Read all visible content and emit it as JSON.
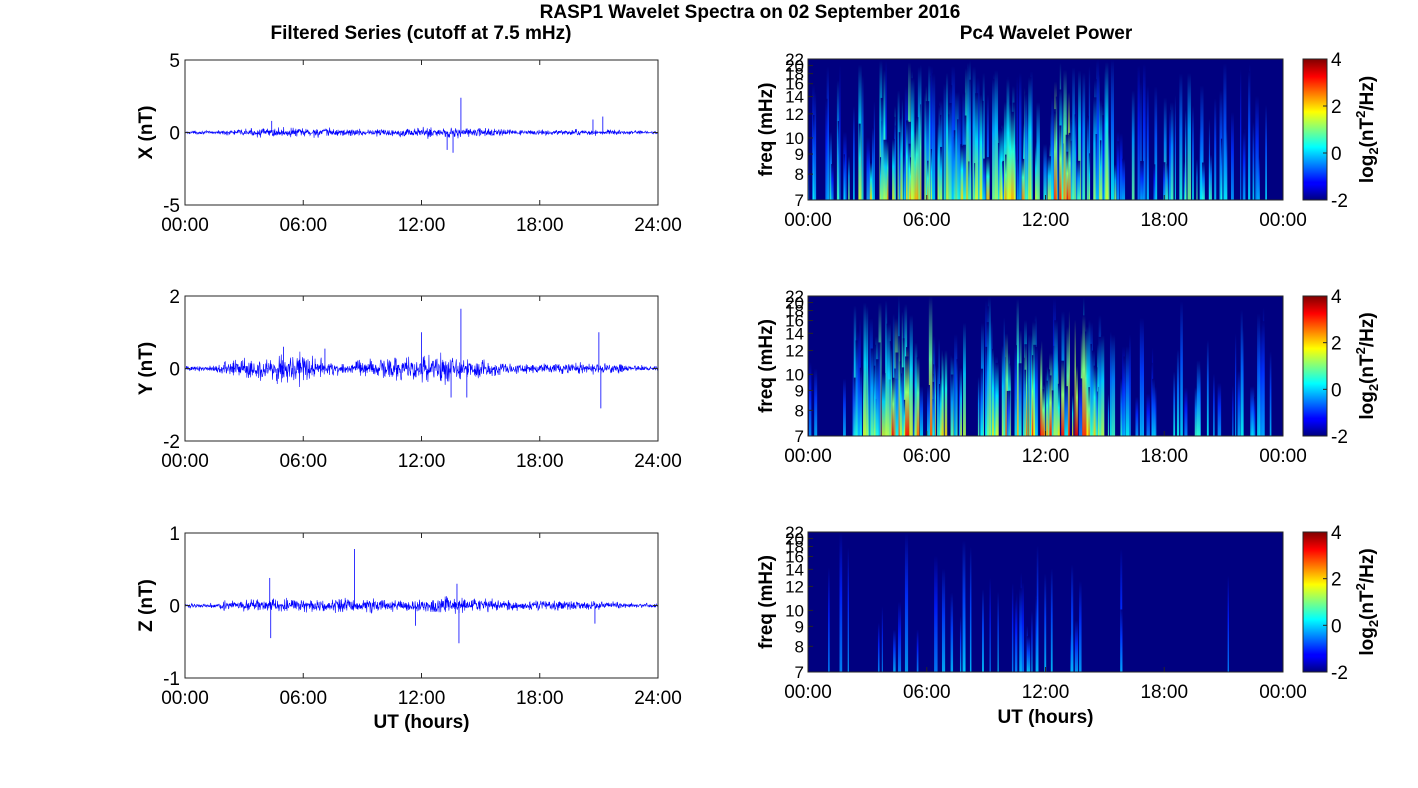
{
  "figure": {
    "title": "RASP1 Wavelet Spectra on 02 September 2016",
    "left_column_title": "Filtered Series (cutoff at 7.5 mHz)",
    "right_column_title": "Pc4 Wavelet Power"
  },
  "chart_data": [
    {
      "type": "line",
      "component": "X",
      "ylabel": "X (nT)",
      "xlabel": "",
      "xlim": [
        0,
        24
      ],
      "ylim": [
        -5,
        5
      ],
      "yticks": [
        -5,
        0,
        5
      ],
      "xtick_labels": [
        "00:00",
        "06:00",
        "12:00",
        "18:00",
        "24:00"
      ],
      "color": "#0000ff",
      "envelope": [
        {
          "t": 0,
          "amp": 0.12
        },
        {
          "t": 1.8,
          "amp": 0.15
        },
        {
          "t": 2.2,
          "amp": 0.25
        },
        {
          "t": 4.5,
          "amp": 0.4
        },
        {
          "t": 6.5,
          "amp": 0.45
        },
        {
          "t": 8.5,
          "amp": 0.3
        },
        {
          "t": 11,
          "amp": 0.35
        },
        {
          "t": 13,
          "amp": 0.5
        },
        {
          "t": 14.5,
          "amp": 0.45
        },
        {
          "t": 17,
          "amp": 0.2
        },
        {
          "t": 21,
          "amp": 0.25
        },
        {
          "t": 24,
          "amp": 0.12
        }
      ],
      "spikes": [
        {
          "t": 4.4,
          "y": 0.8
        },
        {
          "t": 13.3,
          "y": -1.2
        },
        {
          "t": 13.6,
          "y": -1.4
        },
        {
          "t": 14.0,
          "y": 2.4
        },
        {
          "t": 20.7,
          "y": 0.9
        },
        {
          "t": 21.2,
          "y": 1.1
        }
      ]
    },
    {
      "type": "line",
      "component": "Y",
      "ylabel": "Y (nT)",
      "xlabel": "",
      "xlim": [
        0,
        24
      ],
      "ylim": [
        -2,
        2
      ],
      "yticks": [
        -2,
        0,
        2
      ],
      "xtick_labels": [
        "00:00",
        "06:00",
        "12:00",
        "18:00",
        "24:00"
      ],
      "color": "#0000ff",
      "envelope": [
        {
          "t": 0,
          "amp": 0.08
        },
        {
          "t": 1.5,
          "amp": 0.1
        },
        {
          "t": 2.0,
          "amp": 0.25
        },
        {
          "t": 4.0,
          "amp": 0.45
        },
        {
          "t": 6.0,
          "amp": 0.5
        },
        {
          "t": 8.0,
          "amp": 0.2
        },
        {
          "t": 9.5,
          "amp": 0.3
        },
        {
          "t": 11.5,
          "amp": 0.45
        },
        {
          "t": 13.5,
          "amp": 0.5
        },
        {
          "t": 15.0,
          "amp": 0.35
        },
        {
          "t": 16.5,
          "amp": 0.15
        },
        {
          "t": 21.0,
          "amp": 0.2
        },
        {
          "t": 24,
          "amp": 0.07
        }
      ],
      "spikes": [
        {
          "t": 5.0,
          "y": 0.6
        },
        {
          "t": 7.1,
          "y": 0.55
        },
        {
          "t": 12.0,
          "y": 1.0
        },
        {
          "t": 13.5,
          "y": -0.8
        },
        {
          "t": 14.0,
          "y": 1.65
        },
        {
          "t": 14.3,
          "y": -0.8
        },
        {
          "t": 21.0,
          "y": 1.0
        },
        {
          "t": 21.1,
          "y": -1.1
        }
      ]
    },
    {
      "type": "line",
      "component": "Z",
      "ylabel": "Z (nT)",
      "xlabel": "UT (hours)",
      "xlim": [
        0,
        24
      ],
      "ylim": [
        -1,
        1
      ],
      "yticks": [
        -1,
        0,
        1
      ],
      "xtick_labels": [
        "00:00",
        "06:00",
        "12:00",
        "18:00",
        "24:00"
      ],
      "color": "#0000ff",
      "envelope": [
        {
          "t": 0,
          "amp": 0.03
        },
        {
          "t": 1.5,
          "amp": 0.04
        },
        {
          "t": 2.0,
          "amp": 0.08
        },
        {
          "t": 5.0,
          "amp": 0.12
        },
        {
          "t": 8.0,
          "amp": 0.12
        },
        {
          "t": 11.0,
          "amp": 0.11
        },
        {
          "t": 13.5,
          "amp": 0.14
        },
        {
          "t": 16.0,
          "amp": 0.1
        },
        {
          "t": 20.0,
          "amp": 0.08
        },
        {
          "t": 24,
          "amp": 0.03
        }
      ],
      "spikes": [
        {
          "t": 4.3,
          "y": 0.38
        },
        {
          "t": 4.35,
          "y": -0.45
        },
        {
          "t": 8.6,
          "y": 0.78
        },
        {
          "t": 11.7,
          "y": -0.28
        },
        {
          "t": 13.8,
          "y": 0.3
        },
        {
          "t": 13.9,
          "y": -0.52
        },
        {
          "t": 20.8,
          "y": -0.25
        }
      ]
    },
    {
      "type": "heatmap",
      "component": "X",
      "ylabel": "freq (mHz)",
      "xlabel": "",
      "xlim": [
        0,
        24
      ],
      "ylim": [
        7,
        22
      ],
      "ytick_labels": [
        "7",
        "8",
        "9",
        "10",
        "12",
        "14",
        "16",
        "18",
        "20",
        "22"
      ],
      "xtick_labels": [
        "00:00",
        "06:00",
        "12:00",
        "18:00",
        "00:00"
      ],
      "colorbar": {
        "label": "log2(nT²/Hz)",
        "label_base": "log",
        "label_sub": "2",
        "label_mid": "(nT",
        "label_sup": "2",
        "label_end": "/Hz)",
        "range": [
          -2,
          4
        ],
        "ticks": [
          "4",
          "2",
          "0",
          "-2"
        ],
        "colormap": "jet"
      },
      "background": -2,
      "activity": [
        {
          "t": 0,
          "a": 0.15
        },
        {
          "t": 1.5,
          "a": 0.3
        },
        {
          "t": 3.5,
          "a": 0.6
        },
        {
          "t": 5.5,
          "a": 0.85
        },
        {
          "t": 7.5,
          "a": 0.55
        },
        {
          "t": 9.0,
          "a": 0.6
        },
        {
          "t": 11.5,
          "a": 0.75
        },
        {
          "t": 13.2,
          "a": 0.95
        },
        {
          "t": 14.5,
          "a": 0.6
        },
        {
          "t": 17.0,
          "a": 0.2
        },
        {
          "t": 19.5,
          "a": 0.35
        },
        {
          "t": 21.0,
          "a": 0.2
        },
        {
          "t": 24,
          "a": 0.1
        }
      ]
    },
    {
      "type": "heatmap",
      "component": "Y",
      "ylabel": "freq (mHz)",
      "xlabel": "",
      "xlim": [
        0,
        24
      ],
      "ylim": [
        7,
        22
      ],
      "ytick_labels": [
        "7",
        "8",
        "9",
        "10",
        "12",
        "14",
        "16",
        "18",
        "20",
        "22"
      ],
      "xtick_labels": [
        "00:00",
        "06:00",
        "12:00",
        "18:00",
        "00:00"
      ],
      "colorbar": {
        "label": "log2(nT²/Hz)",
        "label_base": "log",
        "label_sub": "2",
        "label_mid": "(nT",
        "label_sup": "2",
        "label_end": "/Hz)",
        "range": [
          -2,
          4
        ],
        "ticks": [
          "4",
          "2",
          "0",
          "-2"
        ],
        "colormap": "jet"
      },
      "background": -2,
      "activity": [
        {
          "t": 0,
          "a": 0.05
        },
        {
          "t": 1.5,
          "a": 0.15
        },
        {
          "t": 3.0,
          "a": 0.6
        },
        {
          "t": 5.0,
          "a": 0.9
        },
        {
          "t": 7.0,
          "a": 0.6
        },
        {
          "t": 8.5,
          "a": 0.3
        },
        {
          "t": 10.0,
          "a": 0.7
        },
        {
          "t": 12.0,
          "a": 0.85
        },
        {
          "t": 13.8,
          "a": 0.9
        },
        {
          "t": 15.0,
          "a": 0.4
        },
        {
          "t": 16.5,
          "a": 0.1
        },
        {
          "t": 20.5,
          "a": 0.3
        },
        {
          "t": 24,
          "a": 0.05
        }
      ]
    },
    {
      "type": "heatmap",
      "component": "Z",
      "ylabel": "freq (mHz)",
      "xlabel": "UT (hours)",
      "xlim": [
        0,
        24
      ],
      "ylim": [
        7,
        22
      ],
      "ytick_labels": [
        "7",
        "8",
        "9",
        "10",
        "12",
        "14",
        "16",
        "18",
        "20",
        "22"
      ],
      "xtick_labels": [
        "00:00",
        "06:00",
        "12:00",
        "18:00",
        "00:00"
      ],
      "colorbar": {
        "label": "log2(nT²/Hz)",
        "label_base": "log",
        "label_sub": "2",
        "label_mid": "(nT",
        "label_sup": "2",
        "label_end": "/Hz)",
        "range": [
          -2,
          4
        ],
        "ticks": [
          "4",
          "2",
          "0",
          "-2"
        ],
        "colormap": "jet"
      },
      "background": -2,
      "activity": [
        {
          "t": 0,
          "a": 0.0
        },
        {
          "t": 3.5,
          "a": 0.08
        },
        {
          "t": 6.0,
          "a": 0.1
        },
        {
          "t": 9.5,
          "a": 0.1
        },
        {
          "t": 12.0,
          "a": 0.12
        },
        {
          "t": 14.0,
          "a": 0.1
        },
        {
          "t": 18.0,
          "a": 0.03
        },
        {
          "t": 21.0,
          "a": 0.05
        },
        {
          "t": 24,
          "a": 0.0
        }
      ]
    }
  ]
}
